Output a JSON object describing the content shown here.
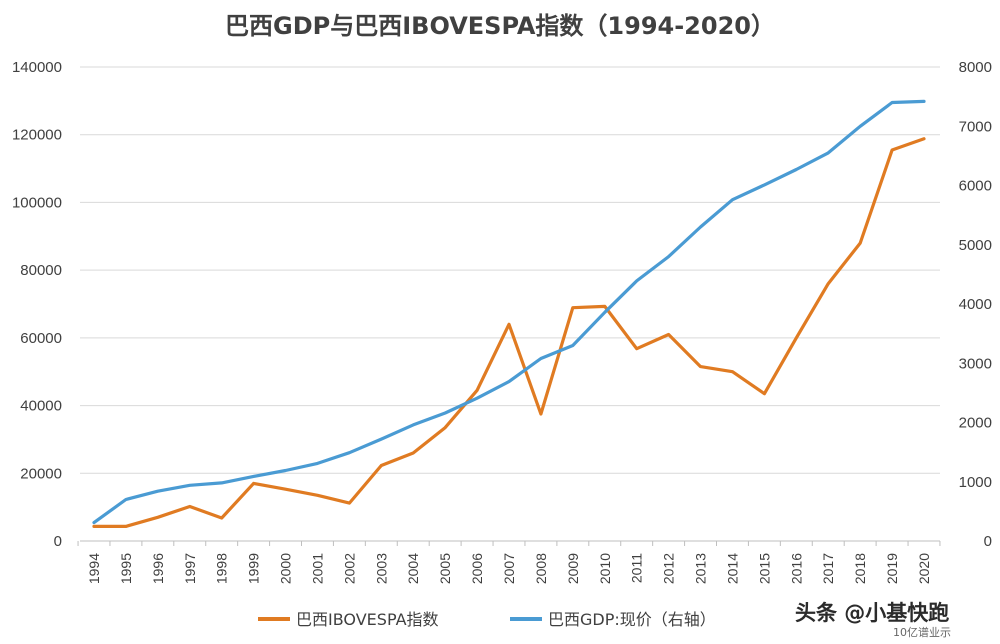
{
  "chart_data": {
    "type": "line",
    "title": "巴西GDP与巴西IBOVESPA指数（1994-2020）",
    "x": [
      "1994",
      "1995",
      "1996",
      "1997",
      "1998",
      "1999",
      "2000",
      "2001",
      "2002",
      "2003",
      "2004",
      "2005",
      "2006",
      "2007",
      "2008",
      "2009",
      "2010",
      "2011",
      "2012",
      "2013",
      "2014",
      "2015",
      "2016",
      "2017",
      "2018",
      "2019",
      "2020"
    ],
    "series": [
      {
        "name": "巴西IBOVESPA指数",
        "axis": "left",
        "color": "#E07B22",
        "values": [
          4300,
          4300,
          7000,
          10200,
          6800,
          17000,
          15300,
          13500,
          11200,
          22300,
          26000,
          33500,
          44500,
          64000,
          37500,
          68900,
          69300,
          56800,
          61000,
          51500,
          50000,
          43500,
          60000,
          76000,
          88000,
          115500,
          118800
        ]
      },
      {
        "name": "巴西GDP:现价（右轴）",
        "axis": "right",
        "color": "#4A9BD3",
        "values": [
          310,
          700,
          840,
          940,
          980,
          1090,
          1190,
          1310,
          1490,
          1720,
          1960,
          2160,
          2410,
          2690,
          3080,
          3300,
          3860,
          4390,
          4800,
          5300,
          5760,
          6010,
          6270,
          6550,
          7000,
          7400,
          7420
        ]
      }
    ],
    "y_left": {
      "range": [
        0,
        140000
      ],
      "ticks": [
        "0",
        "20000",
        "40000",
        "60000",
        "80000",
        "100000",
        "120000",
        "140000"
      ]
    },
    "y_right": {
      "range": [
        0,
        8000
      ],
      "ticks": [
        "0",
        "1000",
        "2000",
        "3000",
        "4000",
        "5000",
        "6000",
        "7000",
        "8000"
      ]
    },
    "grid": true,
    "legend_position": "bottom-center"
  },
  "watermark": {
    "main": "头条 @小基快跑",
    "sub": "10亿谱业示"
  }
}
